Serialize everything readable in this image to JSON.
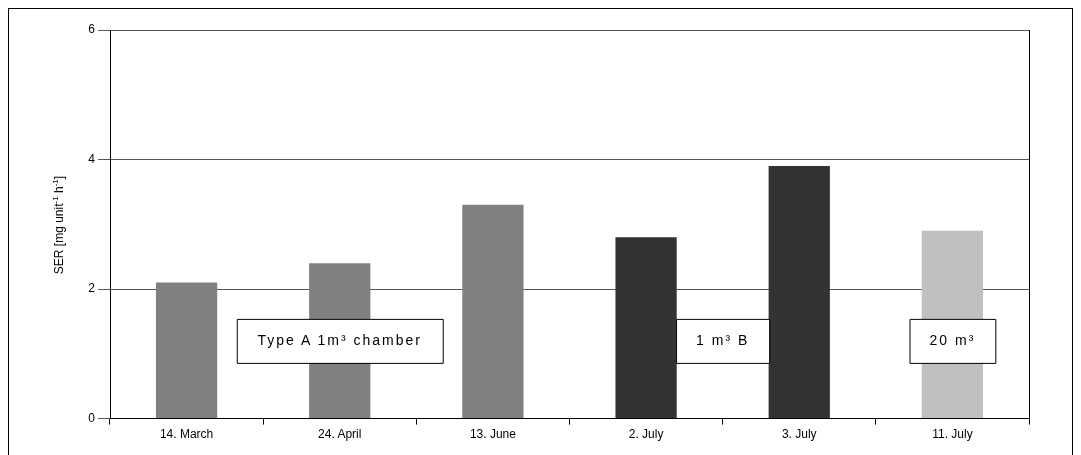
{
  "chart_data": {
    "type": "bar",
    "ylabel": "SER [mg unit$^{-1}$ h$^{-1}$]",
    "categories": [
      "14. March",
      "24. April",
      "13. June",
      "2. July",
      "3. July",
      "11. July"
    ],
    "values": [
      2.1,
      2.4,
      3.3,
      2.8,
      3.9,
      2.9
    ],
    "colors": [
      "#808080",
      "#808080",
      "#808080",
      "#333333",
      "#333333",
      "#c0c0c0"
    ],
    "ylim": [
      0,
      6
    ],
    "yticks": [
      0,
      2,
      4,
      6
    ],
    "grid": "y",
    "annotations": [
      "Type A 1m³ chamber",
      "1 m³ B",
      "20 m³"
    ]
  }
}
